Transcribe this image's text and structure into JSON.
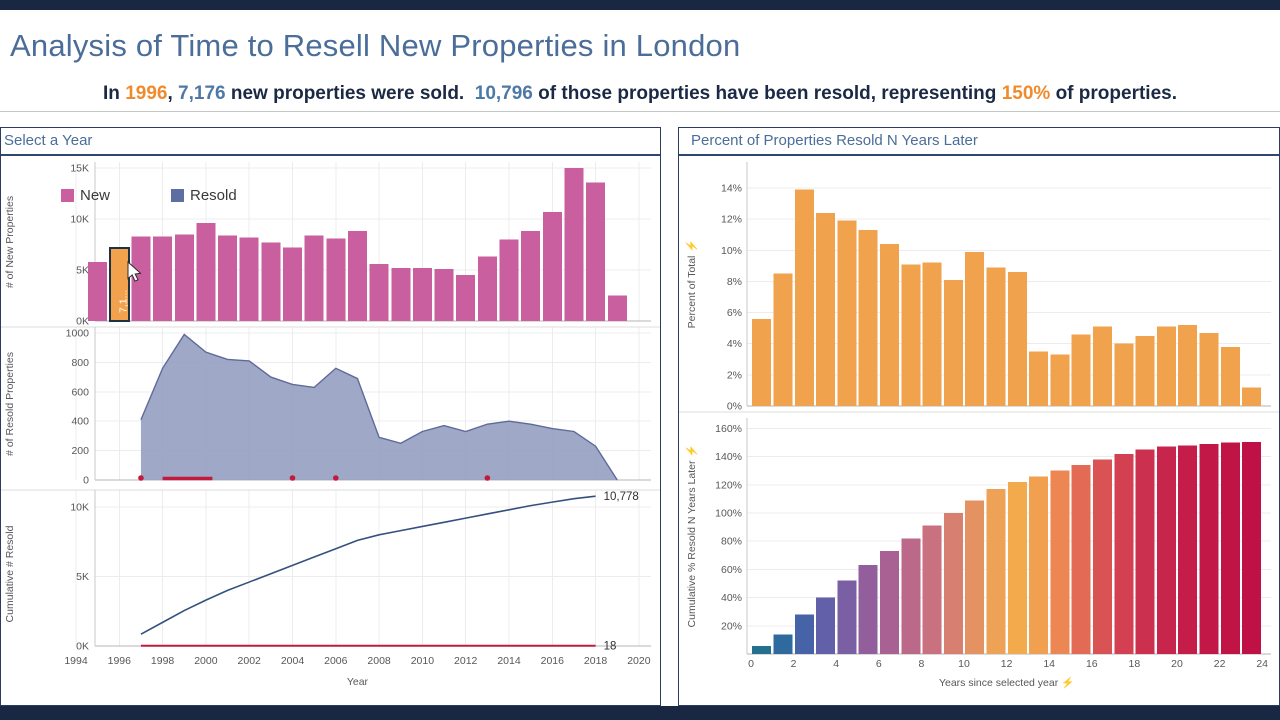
{
  "frame": {
    "color": "#1a2742"
  },
  "header": {
    "title": "Analysis of Time to Resell New Properties in London",
    "title_color": "#4b6d99",
    "text_color": "#1b2944",
    "accent_orange": "#ef8b2e",
    "accent_blue": "#4e79a7",
    "subtitle_parts": [
      {
        "text": "In ",
        "style": "normal"
      },
      {
        "text": "1996",
        "style": "orange"
      },
      {
        "text": ", ",
        "style": "normal"
      },
      {
        "text": "7,176",
        "style": "blue"
      },
      {
        "text": " new properties were sold.  ",
        "style": "normal"
      },
      {
        "text": "10,796",
        "style": "blue"
      },
      {
        "text": " of those properties have been resold, representing ",
        "style": "normal"
      },
      {
        "text": "150%",
        "style": "orange"
      },
      {
        "text": " of properties.",
        "style": "normal"
      }
    ]
  },
  "left_panel": {
    "title": "Select a Year"
  },
  "right_panel": {
    "title": "Percent of Properties Resold N Years Later",
    "axis_icon": "⚡"
  },
  "chart_data": [
    {
      "id": "new-properties-by-year",
      "type": "bar",
      "ylabel": "# of New Properties",
      "ylim": [
        0,
        15000
      ],
      "yticks": [
        [
          0,
          "0K"
        ],
        [
          5000,
          "5K"
        ],
        [
          10000,
          "10K"
        ],
        [
          15000,
          "15K"
        ]
      ],
      "x": [
        1995,
        1996,
        1997,
        1998,
        1999,
        2000,
        2001,
        2002,
        2003,
        2004,
        2005,
        2006,
        2007,
        2008,
        2009,
        2010,
        2011,
        2012,
        2013,
        2014,
        2015,
        2016,
        2017,
        2018,
        2019
      ],
      "values": [
        5800,
        7176,
        8300,
        8300,
        8500,
        9600,
        8400,
        8200,
        7700,
        7200,
        8400,
        8100,
        8800,
        5600,
        5200,
        5200,
        5100,
        4500,
        6300,
        8000,
        8800,
        10700,
        15000,
        13600,
        2500
      ],
      "color": "#c95f9e",
      "highlight": {
        "x": 1996,
        "value": 7176,
        "label": "7,1",
        "color": "#f2a24c",
        "border": "#1d3147"
      },
      "legend": [
        {
          "label": "New",
          "color": "#c95f9e"
        },
        {
          "label": "Resold",
          "color": "#5d6fa1"
        }
      ]
    },
    {
      "id": "resold-properties-by-year",
      "type": "area",
      "ylabel": "# of Resold Properties",
      "ylim": [
        0,
        1000
      ],
      "yticks": [
        [
          0,
          "0"
        ],
        [
          200,
          "200"
        ],
        [
          400,
          "400"
        ],
        [
          600,
          "600"
        ],
        [
          800,
          "800"
        ],
        [
          1000,
          "1000"
        ]
      ],
      "x": [
        1997,
        1998,
        1999,
        2000,
        2001,
        2002,
        2003,
        2004,
        2005,
        2006,
        2007,
        2008,
        2009,
        2010,
        2011,
        2012,
        2013,
        2014,
        2015,
        2016,
        2017,
        2018,
        2019
      ],
      "values": [
        410,
        760,
        990,
        870,
        820,
        810,
        700,
        650,
        630,
        760,
        690,
        290,
        250,
        330,
        370,
        330,
        380,
        400,
        380,
        350,
        330,
        230,
        0
      ],
      "fill": "#959ec0",
      "stroke": "#5e6b99",
      "red_marks": {
        "color": "#c2193c",
        "dots_x": [
          1997,
          2004,
          2006,
          2013
        ],
        "segment_x": [
          1998,
          2000.3
        ]
      }
    },
    {
      "id": "cumulative-resold",
      "type": "line",
      "ylabel": "Cumulative # Resold",
      "ylim": [
        0,
        11000
      ],
      "yticks": [
        [
          0,
          "0K"
        ],
        [
          5000,
          "5K"
        ],
        [
          10000,
          "10K"
        ]
      ],
      "x": [
        1997,
        1998,
        1999,
        2000,
        2001,
        2002,
        2003,
        2004,
        2005,
        2006,
        2007,
        2008,
        2009,
        2010,
        2011,
        2012,
        2013,
        2014,
        2015,
        2016,
        2017,
        2018
      ],
      "values": [
        850,
        1700,
        2550,
        3300,
        4000,
        4600,
        5200,
        5800,
        6400,
        7000,
        7600,
        8000,
        8300,
        8600,
        8900,
        9200,
        9500,
        9800,
        10100,
        10350,
        10600,
        10778
      ],
      "color": "#34517e",
      "end_annotation": "10,778",
      "red_line": {
        "value": 18,
        "label": "18",
        "color": "#c2193c"
      },
      "xticks": [
        1994,
        1996,
        1998,
        2000,
        2002,
        2004,
        2006,
        2008,
        2010,
        2012,
        2014,
        2016,
        2018,
        2020
      ],
      "xlabel": "Year"
    },
    {
      "id": "percent-resold-by-year",
      "type": "bar",
      "ylabel": "Percent of Total",
      "ylim": [
        0,
        14
      ],
      "yticks": [
        [
          0,
          "0%"
        ],
        [
          2,
          "2%"
        ],
        [
          4,
          "4%"
        ],
        [
          6,
          "6%"
        ],
        [
          8,
          "8%"
        ],
        [
          10,
          "10%"
        ],
        [
          12,
          "12%"
        ],
        [
          14,
          "14%"
        ]
      ],
      "x": [
        0,
        1,
        2,
        3,
        4,
        5,
        6,
        7,
        8,
        9,
        10,
        11,
        12,
        13,
        14,
        15,
        16,
        17,
        18,
        19,
        20,
        21,
        22,
        23
      ],
      "values": [
        5.6,
        8.5,
        13.9,
        12.4,
        11.9,
        11.3,
        10.4,
        9.1,
        9.2,
        8.1,
        9.9,
        8.9,
        8.6,
        3.5,
        3.3,
        4.6,
        5.1,
        4,
        4.5,
        5.1,
        5.2,
        4.7,
        3.8,
        1.2
      ],
      "color": "#f0a24d"
    },
    {
      "id": "cumulative-percent-resold",
      "type": "bar",
      "ylabel": "Cumulative % Resold N Years Later",
      "ylim": [
        0,
        165
      ],
      "yticks": [
        [
          20,
          "20%"
        ],
        [
          40,
          "40%"
        ],
        [
          60,
          "60%"
        ],
        [
          80,
          "80%"
        ],
        [
          100,
          "100%"
        ],
        [
          120,
          "120%"
        ],
        [
          140,
          "140%"
        ],
        [
          160,
          "160%"
        ]
      ],
      "x": [
        0,
        1,
        2,
        3,
        4,
        5,
        6,
        7,
        8,
        9,
        10,
        11,
        12,
        13,
        14,
        15,
        16,
        17,
        18,
        19,
        20,
        21,
        22,
        23
      ],
      "values": [
        5.6,
        14,
        28,
        40,
        52,
        63,
        73,
        82,
        91,
        100,
        109,
        117,
        122,
        126,
        130,
        134,
        138,
        142,
        145,
        147,
        148,
        149,
        150,
        150.4
      ],
      "colors": [
        "#26708f",
        "#2f6a9e",
        "#4663a7",
        "#6160a8",
        "#7b5fa4",
        "#935e9c",
        "#a96093",
        "#bb6889",
        "#c9717e",
        "#d77f71",
        "#e59263",
        "#eea255",
        "#f3aa4d",
        "#f1a04f",
        "#ec8653",
        "#e36b55",
        "#da5354",
        "#d24051",
        "#cc304f",
        "#c8254c",
        "#c41d4a",
        "#c21848",
        "#c01446",
        "#bf1145"
      ],
      "xticks": [
        0,
        2,
        4,
        6,
        8,
        10,
        12,
        14,
        16,
        18,
        20,
        22,
        24
      ],
      "xlabel": "Years since selected year"
    }
  ]
}
